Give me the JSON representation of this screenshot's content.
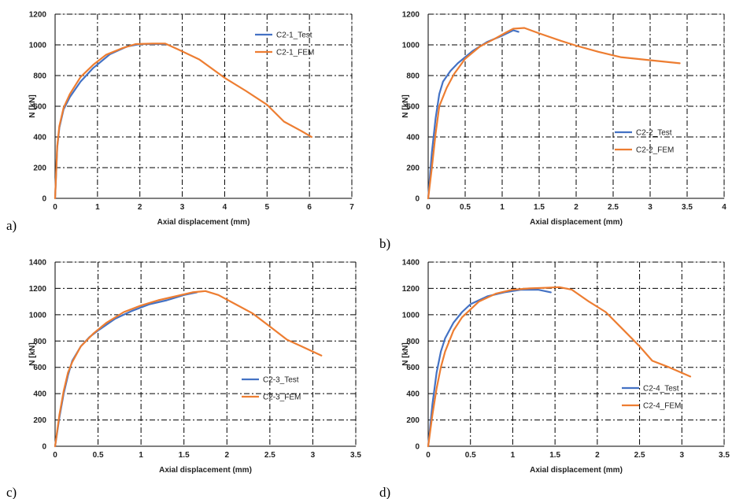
{
  "figure": {
    "panels": [
      "a)",
      "b)",
      "c)",
      "d)"
    ]
  },
  "colors": {
    "test": "#4472c4",
    "fem": "#ed7d31"
  },
  "chart_data": [
    {
      "type": "line",
      "panel_label": "a)",
      "xlabel": "Axial displacement (mm)",
      "ylabel": "N [kN]",
      "xlim": [
        0,
        7
      ],
      "ylim": [
        0,
        1200
      ],
      "xticks": [
        0,
        1,
        2,
        3,
        4,
        5,
        6,
        7
      ],
      "yticks": [
        0,
        200,
        400,
        600,
        800,
        1000,
        1200
      ],
      "grid": true,
      "legend_position": "top-right",
      "series": [
        {
          "name": "C2-1_Test",
          "color": "#4472c4",
          "x": [
            0,
            0.05,
            0.1,
            0.2,
            0.35,
            0.6,
            0.9,
            1.3,
            1.7,
            2.0,
            2.3,
            2.6
          ],
          "y": [
            0,
            330,
            460,
            580,
            660,
            760,
            850,
            940,
            990,
            1005,
            1005,
            1005
          ]
        },
        {
          "name": "C2-1_FEM",
          "color": "#ed7d31",
          "x": [
            0,
            0.05,
            0.1,
            0.2,
            0.35,
            0.6,
            0.9,
            1.2,
            1.6,
            1.9,
            2.3,
            2.6,
            2.9,
            3.4,
            4.0,
            4.5,
            5.0,
            5.4,
            5.8,
            6.05
          ],
          "y": [
            0,
            340,
            470,
            590,
            680,
            790,
            870,
            935,
            980,
            1005,
            1008,
            1008,
            970,
            905,
            785,
            700,
            610,
            500,
            440,
            400
          ]
        }
      ]
    },
    {
      "type": "line",
      "panel_label": "b)",
      "xlabel": "Axial displacement (mm)",
      "ylabel": "N [kN]",
      "xlim": [
        0,
        4
      ],
      "ylim": [
        0,
        1200
      ],
      "xticks": [
        0,
        0.5,
        1,
        1.5,
        2,
        2.5,
        3,
        3.5,
        4
      ],
      "yticks": [
        0,
        200,
        400,
        600,
        800,
        1000,
        1200
      ],
      "grid": true,
      "legend_position": "bottom-right",
      "series": [
        {
          "name": "C2-2_Test",
          "color": "#4472c4",
          "x": [
            0,
            0.05,
            0.1,
            0.15,
            0.2,
            0.3,
            0.4,
            0.5,
            0.6,
            0.8,
            1.0,
            1.15,
            1.22
          ],
          "y": [
            0,
            300,
            520,
            680,
            760,
            830,
            880,
            920,
            960,
            1020,
            1060,
            1095,
            1085
          ]
        },
        {
          "name": "C2-2_FEM",
          "color": "#ed7d31",
          "x": [
            0,
            0.05,
            0.1,
            0.15,
            0.25,
            0.35,
            0.5,
            0.7,
            0.9,
            1.05,
            1.15,
            1.3,
            1.5,
            1.8,
            2.0,
            2.3,
            2.6,
            3.0,
            3.4
          ],
          "y": [
            0,
            200,
            420,
            600,
            720,
            810,
            910,
            990,
            1040,
            1080,
            1105,
            1110,
            1075,
            1025,
            995,
            955,
            920,
            900,
            880
          ]
        }
      ]
    },
    {
      "type": "line",
      "panel_label": "c)",
      "xlabel": "Axial displacement (mm)",
      "ylabel": "N [kN]",
      "xlim": [
        0,
        3.5
      ],
      "ylim": [
        0,
        1400
      ],
      "xticks": [
        0,
        0.5,
        1,
        1.5,
        2,
        2.5,
        3,
        3.5
      ],
      "yticks": [
        0,
        200,
        400,
        600,
        800,
        1000,
        1200,
        1400
      ],
      "grid": true,
      "legend_position": "bottom-right",
      "series": [
        {
          "name": "C2-3_Test",
          "color": "#4472c4",
          "x": [
            0,
            0.05,
            0.1,
            0.15,
            0.2,
            0.3,
            0.4,
            0.5,
            0.7,
            0.9,
            1.1,
            1.3,
            1.5,
            1.65
          ],
          "y": [
            0,
            220,
            400,
            540,
            650,
            760,
            830,
            880,
            970,
            1030,
            1080,
            1110,
            1150,
            1170
          ]
        },
        {
          "name": "C2-3_FEM",
          "color": "#ed7d31",
          "x": [
            0,
            0.05,
            0.1,
            0.15,
            0.2,
            0.3,
            0.45,
            0.6,
            0.8,
            1.0,
            1.2,
            1.4,
            1.6,
            1.75,
            1.9,
            2.1,
            2.3,
            2.5,
            2.7,
            2.9,
            3.1
          ],
          "y": [
            0,
            240,
            420,
            560,
            640,
            760,
            860,
            940,
            1020,
            1070,
            1110,
            1140,
            1170,
            1180,
            1150,
            1080,
            1010,
            910,
            810,
            750,
            690
          ]
        }
      ]
    },
    {
      "type": "line",
      "panel_label": "d)",
      "xlabel": "Axial displacement (mm)",
      "ylabel": "N [kN]",
      "xlim": [
        0,
        3.5
      ],
      "ylim": [
        0,
        1400
      ],
      "xticks": [
        0,
        0.5,
        1,
        1.5,
        2,
        2.5,
        3,
        3.5
      ],
      "yticks": [
        0,
        200,
        400,
        600,
        800,
        1000,
        1200,
        1400
      ],
      "grid": true,
      "legend_position": "bottom-right",
      "series": [
        {
          "name": "C2-4_Test",
          "color": "#4472c4",
          "x": [
            0,
            0.05,
            0.1,
            0.15,
            0.2,
            0.3,
            0.4,
            0.5,
            0.7,
            0.9,
            1.1,
            1.3,
            1.45
          ],
          "y": [
            0,
            320,
            560,
            720,
            820,
            940,
            1020,
            1080,
            1140,
            1170,
            1190,
            1190,
            1170
          ]
        },
        {
          "name": "C2-4_FEM",
          "color": "#ed7d31",
          "x": [
            0,
            0.05,
            0.1,
            0.15,
            0.2,
            0.3,
            0.4,
            0.6,
            0.8,
            1.0,
            1.2,
            1.4,
            1.55,
            1.7,
            1.9,
            2.1,
            2.3,
            2.5,
            2.65,
            2.85,
            3.1
          ],
          "y": [
            0,
            240,
            440,
            600,
            720,
            880,
            980,
            1100,
            1160,
            1190,
            1200,
            1205,
            1210,
            1190,
            1100,
            1020,
            890,
            760,
            650,
            600,
            530
          ]
        }
      ]
    }
  ]
}
